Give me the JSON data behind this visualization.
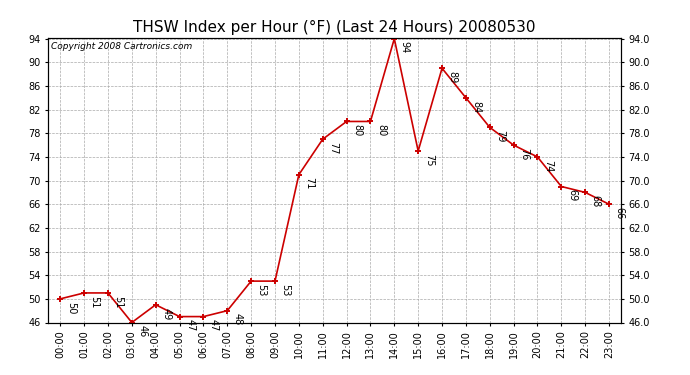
{
  "title": "THSW Index per Hour (°F) (Last 24 Hours) 20080530",
  "copyright": "Copyright 2008 Cartronics.com",
  "hours": [
    "00:00",
    "01:00",
    "02:00",
    "03:00",
    "04:00",
    "05:00",
    "06:00",
    "07:00",
    "08:00",
    "09:00",
    "10:00",
    "11:00",
    "12:00",
    "13:00",
    "14:00",
    "15:00",
    "16:00",
    "17:00",
    "18:00",
    "19:00",
    "20:00",
    "21:00",
    "22:00",
    "23:00"
  ],
  "values": [
    50,
    51,
    51,
    46,
    49,
    47,
    47,
    48,
    53,
    53,
    71,
    77,
    80,
    80,
    94,
    75,
    89,
    84,
    79,
    76,
    74,
    69,
    68,
    66
  ],
  "line_color": "#cc0000",
  "marker_color": "#cc0000",
  "bg_color": "#ffffff",
  "grid_color": "#aaaaaa",
  "ylim_min": 46.0,
  "ylim_max": 94.0,
  "ytick_interval": 4.0,
  "title_fontsize": 11,
  "label_fontsize": 7,
  "annotation_fontsize": 7,
  "copyright_fontsize": 6.5,
  "figwidth": 6.9,
  "figheight": 3.75
}
